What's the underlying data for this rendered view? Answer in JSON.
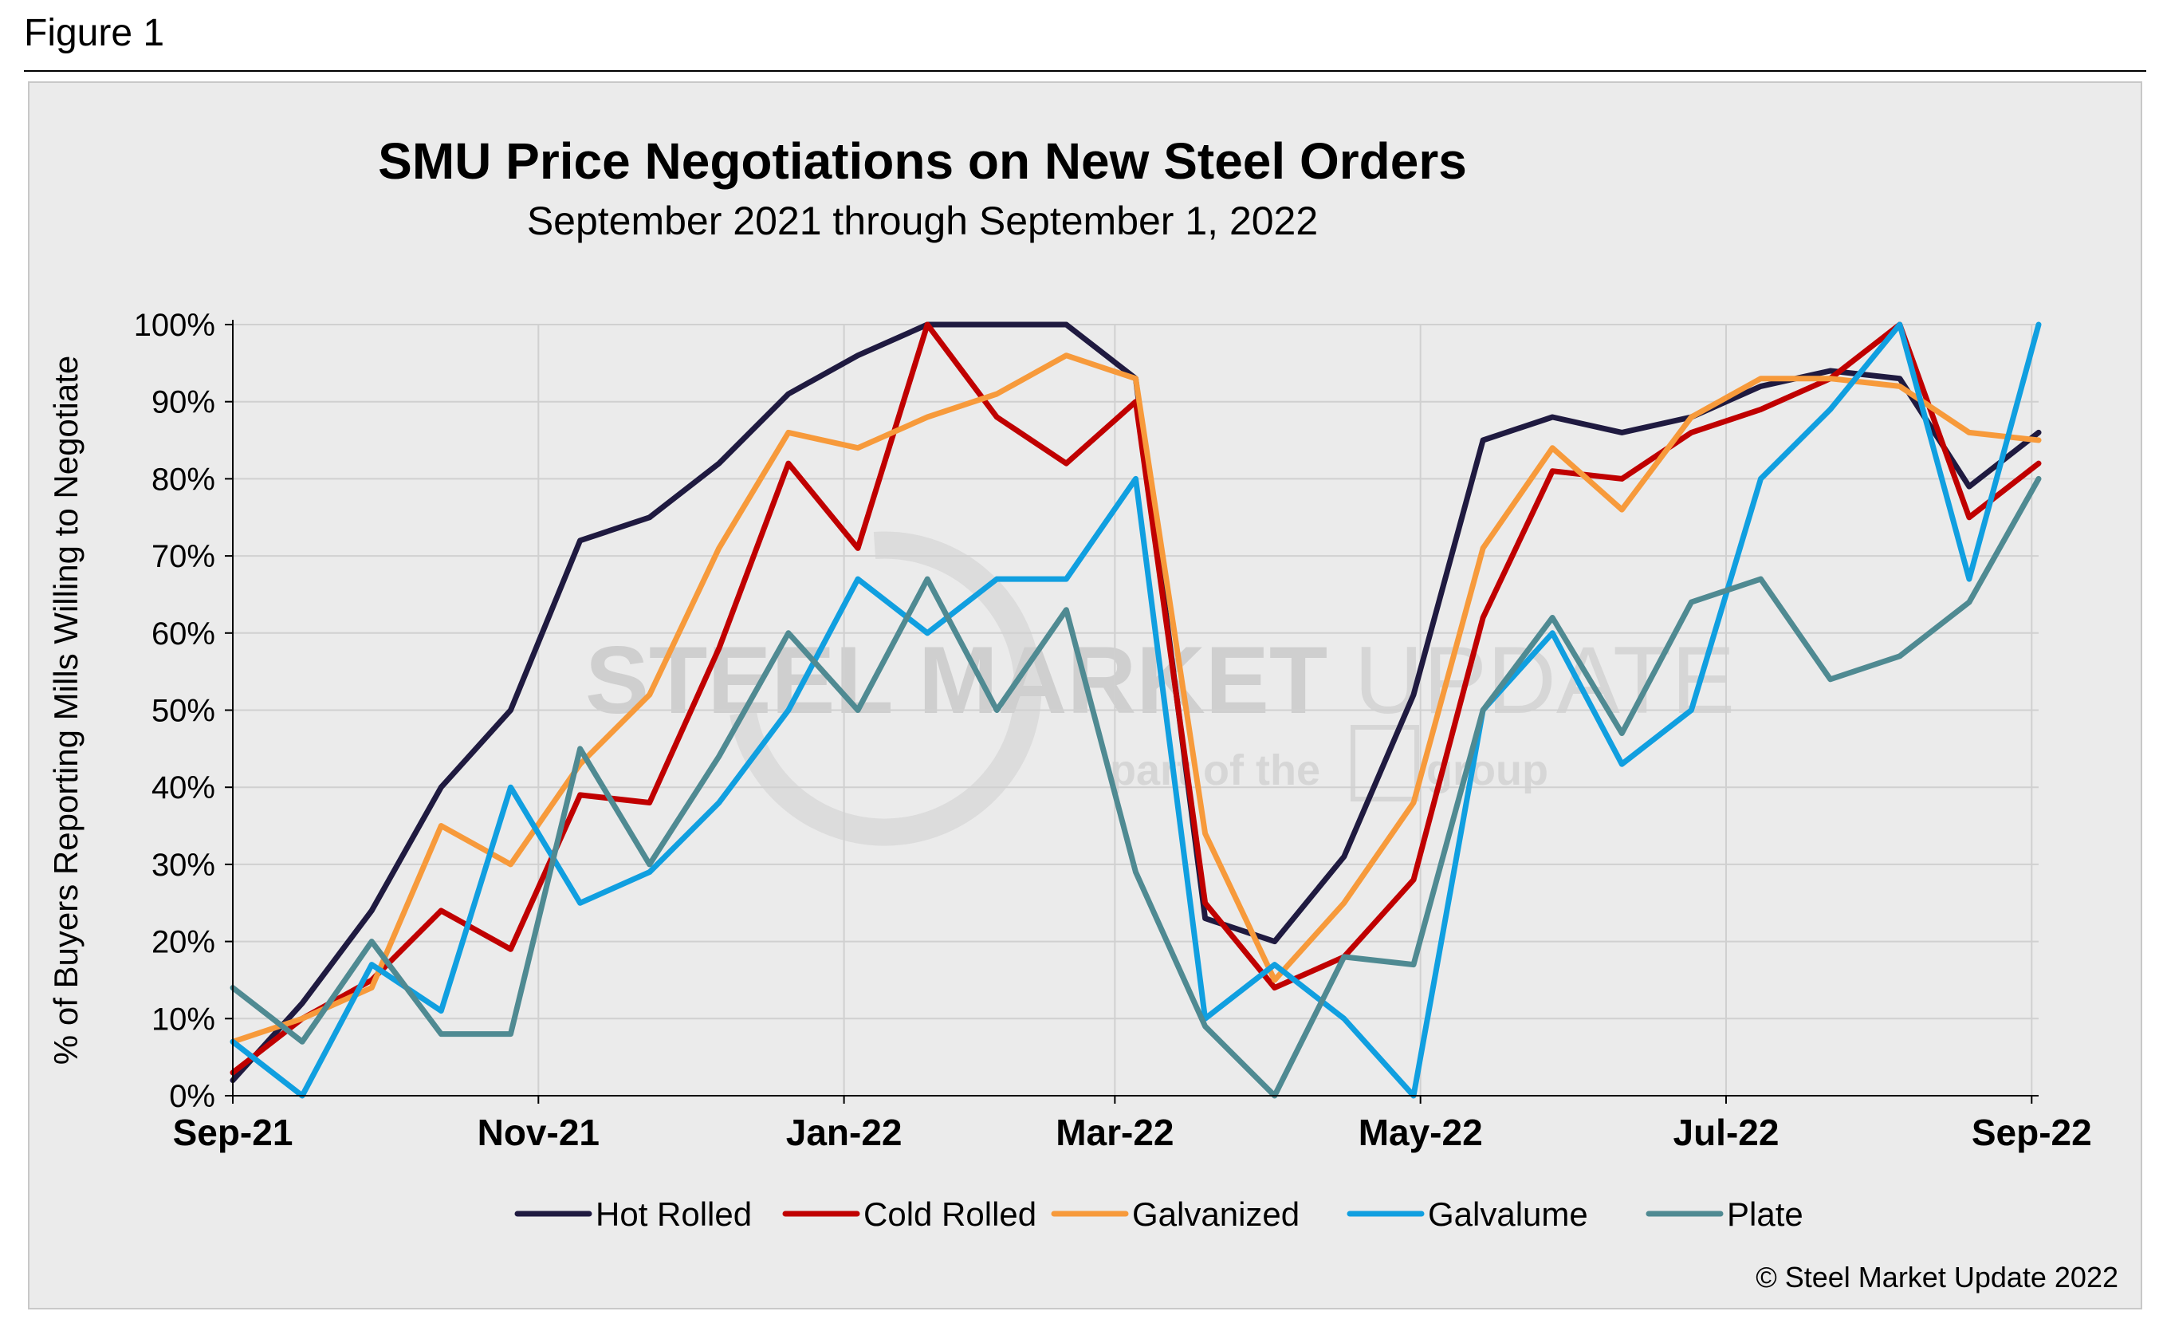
{
  "figure_label": "Figure 1",
  "copyright": "© Steel Market Update 2022",
  "watermark": {
    "line1_bold": "STEEL MARKET",
    "line1_light": " UPDATE",
    "line2": "part of the",
    "line3": "group"
  },
  "chart_data": {
    "type": "line",
    "title": "SMU Price Negotiations on New Steel Orders",
    "subtitle": "September 2021 through September 1, 2022",
    "xlabel": "",
    "ylabel": "% of Buyers Reporting Mills Willing to Negotiate",
    "ylim": [
      0,
      100
    ],
    "y_ticks": [
      0,
      10,
      20,
      30,
      40,
      50,
      60,
      70,
      80,
      90,
      100
    ],
    "y_tick_labels": [
      "0%",
      "10%",
      "20%",
      "30%",
      "40%",
      "50%",
      "60%",
      "70%",
      "80%",
      "90%",
      "100%"
    ],
    "x_count": 27,
    "x_tick_positions": [
      0,
      4.4,
      8.8,
      12.7,
      17.1,
      21.5,
      25.9
    ],
    "x_tick_labels": [
      "Sep-21",
      "Nov-21",
      "Jan-22",
      "Mar-22",
      "May-22",
      "Jul-22",
      "Sep-22"
    ],
    "legend_position": "bottom",
    "grid": true,
    "series": [
      {
        "name": "Hot Rolled",
        "color": "#1f1a40",
        "values": [
          2,
          12,
          24,
          40,
          50,
          72,
          75,
          82,
          91,
          96,
          100,
          100,
          100,
          93,
          23,
          20,
          31,
          52,
          85,
          88,
          86,
          88,
          92,
          94,
          93,
          79,
          86
        ]
      },
      {
        "name": "Cold Rolled",
        "color": "#c00000",
        "values": [
          3,
          10,
          15,
          24,
          19,
          39,
          38,
          58,
          82,
          71,
          100,
          88,
          82,
          90,
          25,
          14,
          18,
          28,
          62,
          81,
          80,
          86,
          89,
          93,
          100,
          75,
          82
        ]
      },
      {
        "name": "Galvanized",
        "color": "#f79a3b",
        "values": [
          7,
          10,
          14,
          35,
          30,
          43,
          52,
          71,
          86,
          84,
          88,
          91,
          96,
          93,
          34,
          15,
          25,
          38,
          71,
          84,
          76,
          88,
          93,
          93,
          92,
          86,
          85
        ]
      },
      {
        "name": "Galvalume",
        "color": "#109fe0",
        "values": [
          7,
          0,
          17,
          11,
          40,
          25,
          29,
          38,
          50,
          67,
          60,
          67,
          67,
          80,
          10,
          17,
          10,
          0,
          50,
          60,
          43,
          50,
          80,
          89,
          100,
          67,
          100
        ]
      },
      {
        "name": "Plate",
        "color": "#4f8a92",
        "values": [
          14,
          7,
          20,
          8,
          8,
          45,
          30,
          44,
          60,
          50,
          67,
          50,
          63,
          29,
          9,
          0,
          18,
          17,
          50,
          62,
          47,
          64,
          67,
          54,
          57,
          64,
          80
        ]
      }
    ]
  }
}
